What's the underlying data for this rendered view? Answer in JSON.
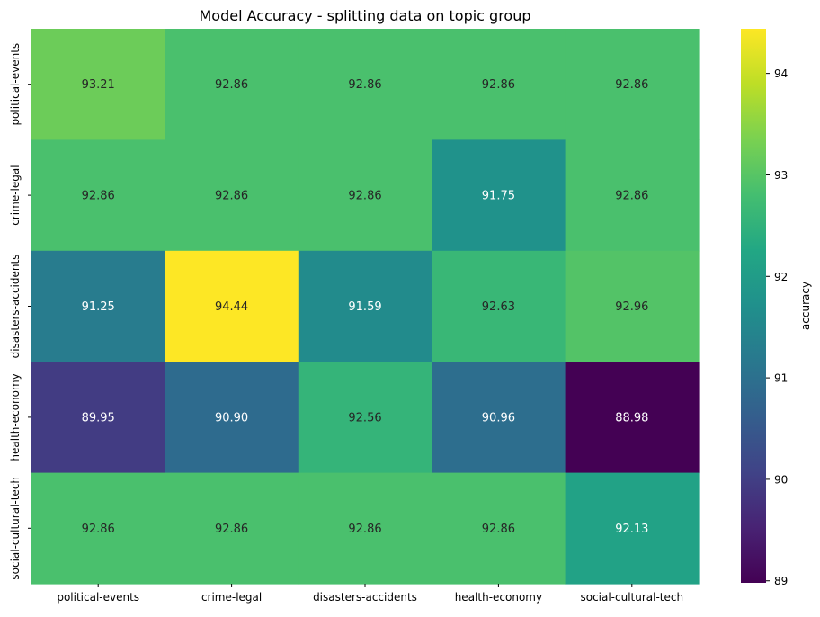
{
  "chart_data": {
    "type": "heatmap",
    "title": "Model Accuracy - splitting data on topic group",
    "xlabel": "",
    "ylabel": "",
    "x_categories": [
      "political-events",
      "crime-legal",
      "disasters-accidents",
      "health-economy",
      "social-cultural-tech"
    ],
    "y_categories": [
      "political-events",
      "crime-legal",
      "disasters-accidents",
      "health-economy",
      "social-cultural-tech"
    ],
    "values": [
      [
        93.21,
        92.86,
        92.86,
        92.86,
        92.86
      ],
      [
        92.86,
        92.86,
        92.86,
        91.75,
        92.86
      ],
      [
        91.25,
        94.44,
        91.59,
        92.63,
        92.96
      ],
      [
        89.95,
        90.9,
        92.56,
        90.96,
        88.98
      ],
      [
        92.86,
        92.86,
        92.86,
        92.86,
        92.13
      ]
    ],
    "value_labels": [
      [
        "93.21",
        "92.86",
        "92.86",
        "92.86",
        "92.86"
      ],
      [
        "92.86",
        "92.86",
        "92.86",
        "91.75",
        "92.86"
      ],
      [
        "91.25",
        "94.44",
        "91.59",
        "92.63",
        "92.96"
      ],
      [
        "89.95",
        "90.90",
        "92.56",
        "90.96",
        "88.98"
      ],
      [
        "92.86",
        "92.86",
        "92.86",
        "92.86",
        "92.13"
      ]
    ],
    "colormap": "viridis",
    "color_range": [
      88.98,
      94.44
    ],
    "colorbar": {
      "label": "accuracy",
      "ticks": [
        89,
        90,
        91,
        92,
        93,
        94
      ],
      "tick_labels": [
        "89",
        "90",
        "91",
        "92",
        "93",
        "94"
      ]
    },
    "grid": false,
    "legend": "colorbar-right"
  }
}
